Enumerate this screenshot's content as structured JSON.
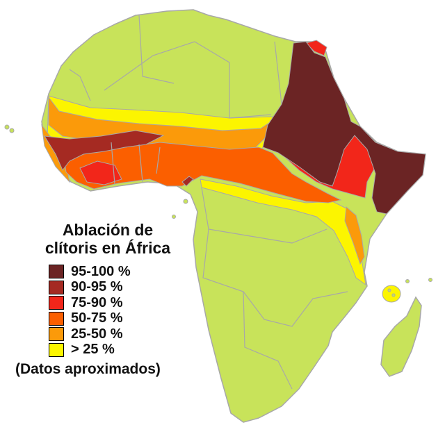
{
  "colors": {
    "background": "#ffffff",
    "land_no_data": "#c8e35a",
    "borders": "#a8a8a8",
    "c95_100": "#6b2424",
    "c90_95": "#a52a22",
    "c75_90": "#f2261a",
    "c50_75": "#fb5f00",
    "c25_50": "#fb9a0a",
    "lt25": "#fcf500"
  },
  "legend": {
    "title_line1": "Ablación de",
    "title_line2": "clítoris en África",
    "items": [
      {
        "label": "95-100 %",
        "color": "#6b2424"
      },
      {
        "label": "90-95 %",
        "color": "#a52a22"
      },
      {
        "label": "75-90 %",
        "color": "#f2261a"
      },
      {
        "label": "50-75 %",
        "color": "#fb5f00"
      },
      {
        "label": "25-50 %",
        "color": "#fb9a0a"
      },
      {
        "label": "> 25 %",
        "color": "#fcf500"
      }
    ],
    "note": "(Datos aproximados)"
  }
}
